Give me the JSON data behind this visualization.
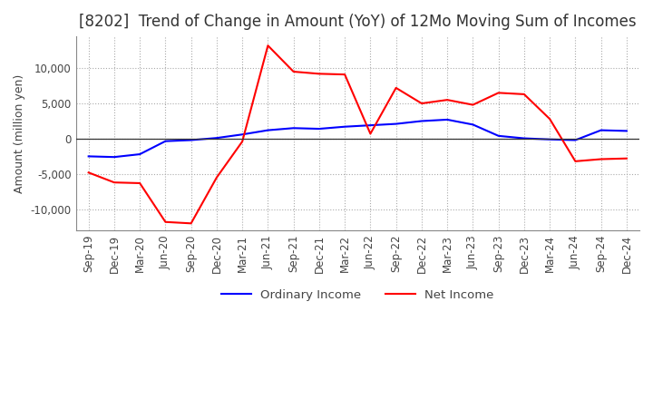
{
  "title": "[8202]  Trend of Change in Amount (YoY) of 12Mo Moving Sum of Incomes",
  "ylabel": "Amount (million yen)",
  "xlabel": "",
  "background_color": "#ffffff",
  "grid_color": "#aaaaaa",
  "ylim": [
    -13000,
    14500
  ],
  "yticks": [
    -10000,
    -5000,
    0,
    5000,
    10000
  ],
  "x_labels": [
    "Sep-19",
    "Dec-19",
    "Mar-20",
    "Jun-20",
    "Sep-20",
    "Dec-20",
    "Mar-21",
    "Jun-21",
    "Sep-21",
    "Dec-21",
    "Mar-22",
    "Jun-22",
    "Sep-22",
    "Dec-22",
    "Mar-23",
    "Jun-23",
    "Sep-23",
    "Dec-23",
    "Mar-24",
    "Jun-24",
    "Sep-24",
    "Dec-24"
  ],
  "ordinary_income": [
    -2500,
    -2600,
    -2200,
    -350,
    -200,
    100,
    600,
    1200,
    1500,
    1400,
    1700,
    1900,
    2100,
    2500,
    2700,
    2000,
    400,
    50,
    -100,
    -200,
    1200,
    1100
  ],
  "net_income": [
    -4800,
    -6200,
    -6300,
    -11800,
    -12000,
    -5500,
    -400,
    13200,
    9500,
    9200,
    9100,
    700,
    7200,
    5000,
    5500,
    4800,
    6500,
    6300,
    2800,
    -3200,
    -2900,
    -2800
  ],
  "ordinary_color": "#0000ff",
  "net_color": "#ff0000",
  "line_width": 1.5,
  "title_fontsize": 12,
  "tick_fontsize": 8.5,
  "ylabel_fontsize": 9,
  "legend_fontsize": 9.5
}
